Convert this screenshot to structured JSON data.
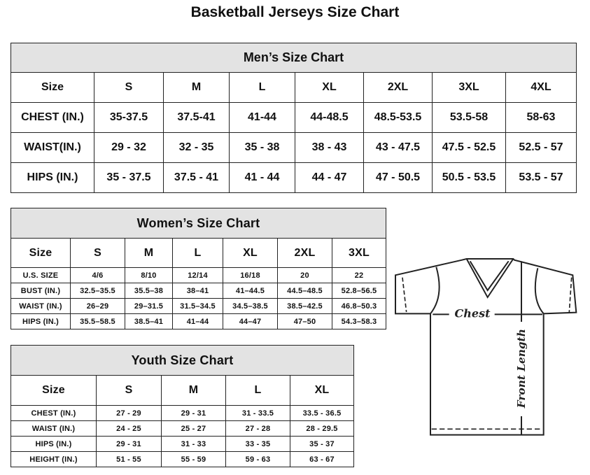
{
  "title": "Basketball Jerseys Size Chart",
  "charts": [
    {
      "id": "men",
      "caption": "Men’s Size Chart",
      "header": [
        "Size",
        "S",
        "M",
        "L",
        "XL",
        "2XL",
        "3XL",
        "4XL"
      ],
      "rows": [
        [
          "CHEST (IN.)",
          "35-37.5",
          "37.5-41",
          "41-44",
          "44-48.5",
          "48.5-53.5",
          "53.5-58",
          "58-63"
        ],
        [
          "WAIST(IN.)",
          "29 - 32",
          "32 - 35",
          "35 - 38",
          "38 - 43",
          "43 - 47.5",
          "47.5 - 52.5",
          "52.5 - 57"
        ],
        [
          "HIPS (IN.)",
          "35 - 37.5",
          "37.5 - 41",
          "41 - 44",
          "44 - 47",
          "47 - 50.5",
          "50.5 - 53.5",
          "53.5 - 57"
        ]
      ]
    },
    {
      "id": "women",
      "caption": "Women’s Size Chart",
      "header": [
        "Size",
        "S",
        "M",
        "L",
        "XL",
        "2XL",
        "3XL"
      ],
      "rows": [
        [
          "U.S. SIZE",
          "4/6",
          "8/10",
          "12/14",
          "16/18",
          "20",
          "22"
        ],
        [
          "BUST (IN.)",
          "32.5–35.5",
          "35.5–38",
          "38–41",
          "41–44.5",
          "44.5–48.5",
          "52.8–56.5"
        ],
        [
          "WAIST (IN.)",
          "26–29",
          "29–31.5",
          "31.5–34.5",
          "34.5–38.5",
          "38.5–42.5",
          "46.8–50.3"
        ],
        [
          "HIPS (IN.)",
          "35.5–58.5",
          "38.5–41",
          "41–44",
          "44–47",
          "47–50",
          "54.3–58.3"
        ]
      ]
    },
    {
      "id": "youth",
      "caption": "Youth Size Chart",
      "header": [
        "Size",
        "S",
        "M",
        "L",
        "XL"
      ],
      "rows": [
        [
          "CHEST (IN.)",
          "27 - 29",
          "29 - 31",
          "31 - 33.5",
          "33.5 - 36.5"
        ],
        [
          "WAIST (IN.)",
          "24 - 25",
          "25 - 27",
          "27 - 28",
          "28 - 29.5"
        ],
        [
          "HIPS (IN.)",
          "29 - 31",
          "31 - 33",
          "33 - 35",
          "35 - 37"
        ],
        [
          "HEIGHT (IN.)",
          "51 - 55",
          "55 - 59",
          "59 - 63",
          "63 - 67"
        ]
      ]
    }
  ],
  "diagram": {
    "chest_label": "Chest",
    "length_label": "Front Length"
  }
}
